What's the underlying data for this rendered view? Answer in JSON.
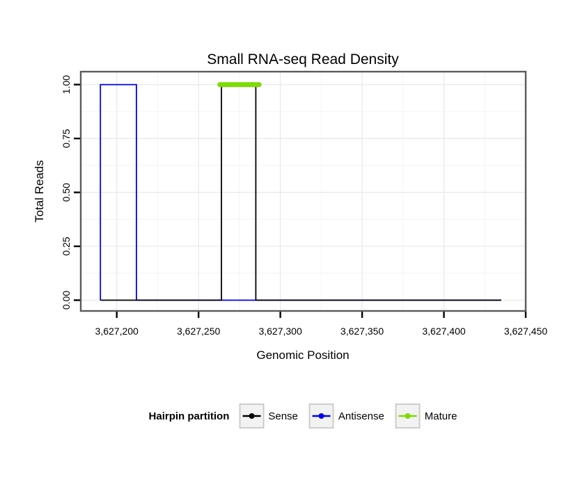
{
  "chart_data": {
    "type": "step-line",
    "title": "Small RNA-seq Read Density",
    "xlabel": "Genomic Position",
    "ylabel": "Total Reads",
    "xlim": [
      3627178,
      3627450
    ],
    "ylim": [
      -0.05,
      1.06
    ],
    "x_ticks": [
      3627200,
      3627250,
      3627300,
      3627350,
      3627400,
      3627450
    ],
    "x_tick_labels": [
      "3,627,200",
      "3,627,250",
      "3,627,300",
      "3,627,350",
      "3,627,400",
      "3,627,450"
    ],
    "y_ticks": [
      0,
      0.25,
      0.5,
      0.75,
      1
    ],
    "y_tick_labels": [
      "0.00",
      "0.25",
      "0.50",
      "0.75",
      "1.00"
    ],
    "grid": {
      "major": true,
      "minor": true
    },
    "legend_position": "bottom",
    "colors": {
      "panel_bg": "#FFFFFF",
      "panel_border": "#5A5A5A",
      "grid_major": "#E9E9E9",
      "grid_minor": "#F4F4F4",
      "tick": "#000000"
    },
    "series": [
      {
        "name": "Antisense",
        "color": "#0000EE",
        "width": 1.8,
        "points": [
          [
            3627190,
            0
          ],
          [
            3627190,
            1
          ],
          [
            3627212,
            1
          ],
          [
            3627212,
            0
          ],
          [
            3627435,
            0
          ]
        ]
      },
      {
        "name": "Sense",
        "color": "#000000",
        "width": 1.8,
        "points": [
          [
            3627190,
            0
          ],
          [
            3627264,
            0
          ],
          [
            3627264,
            1
          ],
          [
            3627285,
            1
          ],
          [
            3627285,
            0
          ],
          [
            3627435,
            0
          ]
        ]
      },
      {
        "name": "Mature",
        "color": "#7CDB00",
        "width": 7,
        "linecap": "round",
        "points": [
          [
            3627263,
            1
          ],
          [
            3627287,
            1
          ]
        ]
      }
    ],
    "legend": {
      "title": "Hairpin partition",
      "items": [
        {
          "name": "Sense",
          "color": "#000000"
        },
        {
          "name": "Antisense",
          "color": "#0000EE"
        },
        {
          "name": "Mature",
          "color": "#7CDB00"
        }
      ]
    }
  }
}
